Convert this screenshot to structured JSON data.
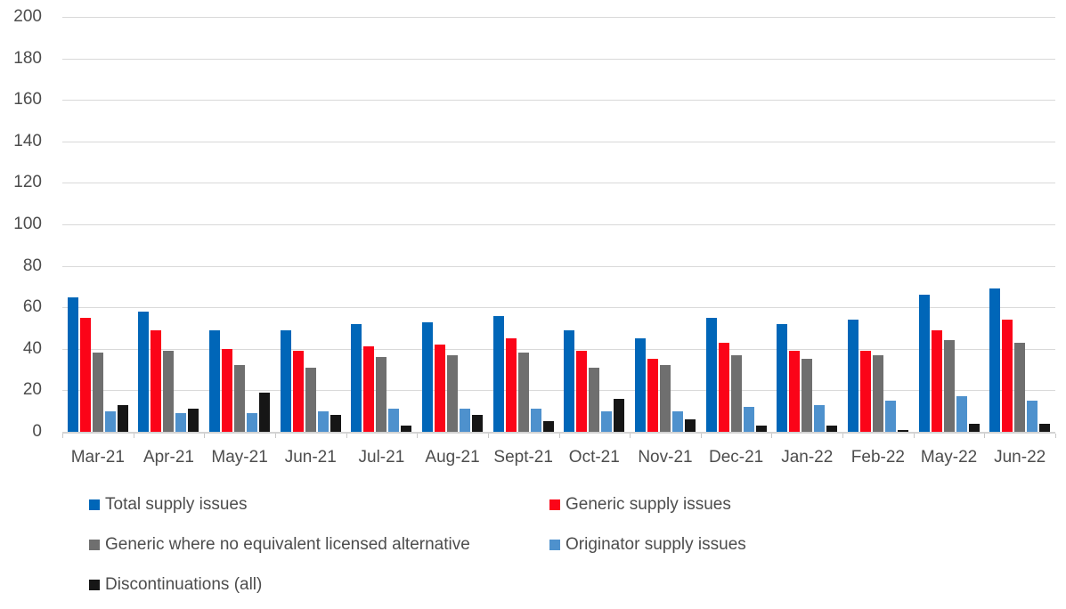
{
  "chart_data": {
    "type": "bar",
    "title": "",
    "xlabel": "",
    "ylabel": "",
    "categories": [
      "Mar-21",
      "Apr-21",
      "May-21",
      "Jun-21",
      "Jul-21",
      "Aug-21",
      "Sept-21",
      "Oct-21",
      "Nov-21",
      "Dec-21",
      "Jan-22",
      "Feb-22",
      "May-22",
      "Jun-22"
    ],
    "series": [
      {
        "name": "Total supply issues",
        "color": "#0066B8",
        "values": [
          65,
          58,
          49,
          49,
          52,
          53,
          56,
          49,
          45,
          55,
          52,
          54,
          66,
          69
        ]
      },
      {
        "name": "Generic supply issues",
        "color": "#FB0418",
        "values": [
          55,
          49,
          40,
          39,
          41,
          42,
          45,
          39,
          35,
          43,
          39,
          39,
          49,
          54
        ]
      },
      {
        "name": "Generic where no equivalent licensed alternative",
        "color": "#6F6F6F",
        "values": [
          38,
          39,
          32,
          31,
          36,
          37,
          38,
          31,
          32,
          37,
          35,
          37,
          44,
          43
        ]
      },
      {
        "name": "Originator supply issues",
        "color": "#4E91CD",
        "values": [
          10,
          9,
          9,
          10,
          11,
          11,
          11,
          10,
          10,
          12,
          13,
          15,
          17,
          15
        ]
      },
      {
        "name": "Discontinuations (all)",
        "color": "#161616",
        "values": [
          13,
          11,
          19,
          8,
          3,
          8,
          5,
          16,
          6,
          3,
          3,
          1,
          4,
          4
        ]
      }
    ],
    "ylim": [
      0,
      200
    ],
    "ytick_step": 20,
    "ytick_labels": [
      "0",
      "20",
      "40",
      "60",
      "80",
      "100",
      "120",
      "140",
      "160",
      "180",
      "200"
    ],
    "grid": true,
    "legend_position": "bottom",
    "legend_rows": [
      [
        0,
        1
      ],
      [
        2,
        3
      ],
      [
        4
      ]
    ]
  },
  "colors": {
    "background": "#FFFFFF",
    "gridline": "#D9D9D9",
    "axis_line": "#D3D3D3",
    "tick_label": "#4D4D4D",
    "legend_text": "#4D4D4D"
  }
}
